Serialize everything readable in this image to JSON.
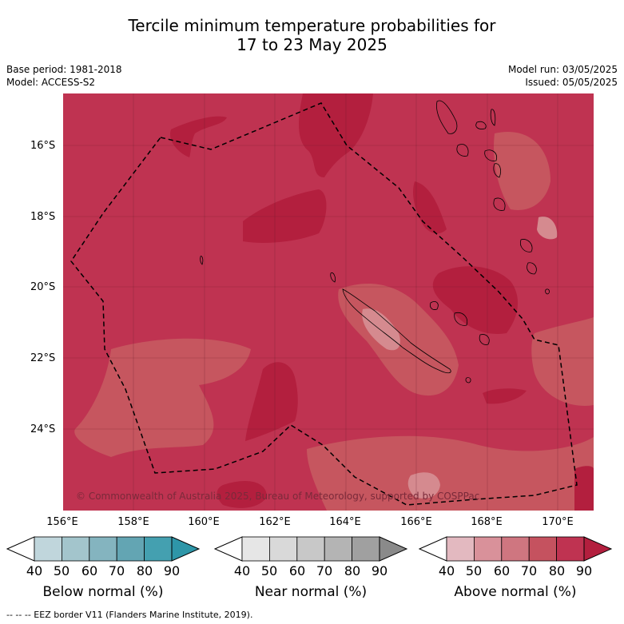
{
  "title": {
    "line1": "Tercile minimum temperature probabilities for",
    "line2": "17 to 23 May 2025"
  },
  "meta": {
    "base_period": "Base period: 1981-2018",
    "model": "Model: ACCESS-S2",
    "model_run": "Model run: 03/05/2025",
    "issued": "Issued: 05/05/2025"
  },
  "map": {
    "lat_labels": [
      "16°S",
      "18°S",
      "20°S",
      "22°S",
      "24°S"
    ],
    "lon_labels": [
      "156°E",
      "158°E",
      "160°E",
      "162°E",
      "164°E",
      "166°E",
      "168°E",
      "170°E"
    ],
    "copyright": "© Commonwealth of Australia 2025, Bureau of Meteorology, supported by COSPPac",
    "colors": {
      "base": "#bf3351",
      "darker": "#b31f3e",
      "lighter": "#c6565f",
      "lightest": "#d58a8f",
      "eez_line": "#000000"
    }
  },
  "legend": {
    "tick_labels": [
      "40",
      "50",
      "60",
      "70",
      "80",
      "90"
    ],
    "colorbars": [
      {
        "title": "Below normal (%)",
        "colors": [
          "#ffffff",
          "#c0d6dc",
          "#a3c5cc",
          "#84b4bf",
          "#63a5b3",
          "#44a0b0",
          "#2e96a8"
        ]
      },
      {
        "title": "Near normal (%)",
        "colors": [
          "#ffffff",
          "#e6e6e6",
          "#d9d9d9",
          "#c8c8c8",
          "#b4b4b4",
          "#a0a0a0",
          "#8a8a8a"
        ]
      },
      {
        "title": "Above normal (%)",
        "colors": [
          "#ffffff",
          "#e3b9c0",
          "#d9919a",
          "#cf7680",
          "#c5525f",
          "#bf3351",
          "#b31f3e"
        ]
      }
    ]
  },
  "footer": "--  --  -- EEZ border V11 (Flanders Marine Institute, 2019)."
}
